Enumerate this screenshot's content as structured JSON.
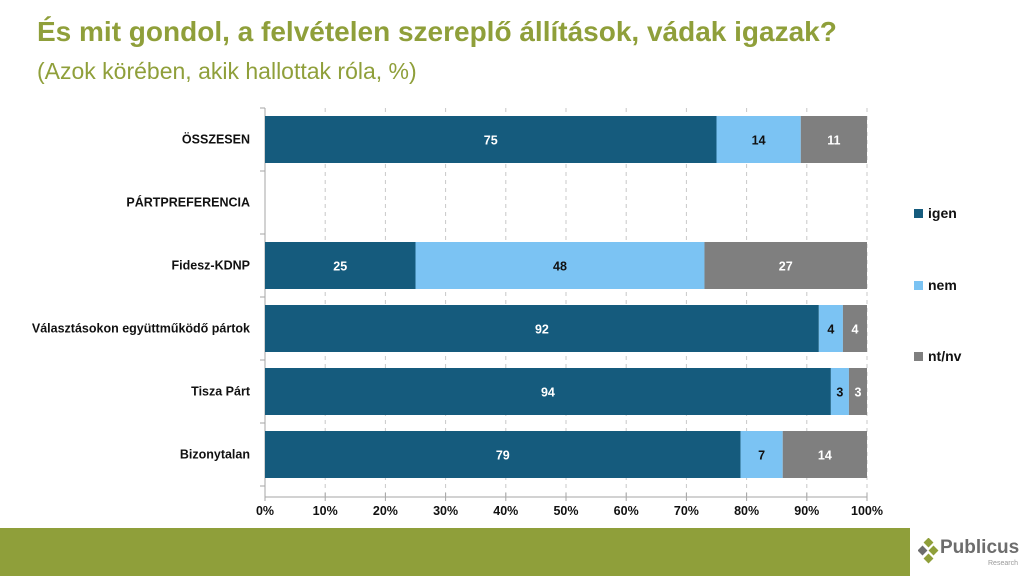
{
  "header": {
    "title": "És mit gondol, a felvételen szereplő állítások, vádak igazak?",
    "subtitle": "(Azok körében, akik hallottak róla, %)"
  },
  "chart_data": {
    "type": "bar",
    "orientation": "horizontal",
    "stacked": true,
    "title": "És mit gondol, a felvételen szereplő állítások, vádak igazak?",
    "subtitle": "(Azok körében, akik hallottak róla, %)",
    "xlabel": "",
    "ylabel": "",
    "xlim": [
      0,
      100
    ],
    "x_ticks": [
      "0%",
      "10%",
      "20%",
      "30%",
      "40%",
      "50%",
      "60%",
      "70%",
      "80%",
      "90%",
      "100%"
    ],
    "grid": "vertical dashed",
    "legend_position": "right",
    "categories": [
      "ÖSSZESEN",
      "PÁRTPREFERENCIA",
      "Fidesz-KDNP",
      "Választásokon együttműködő pártok",
      "Tisza Párt",
      "Bizonytalan"
    ],
    "series": [
      {
        "name": "igen",
        "color": "#155b7d",
        "label_color": "#ffffff",
        "values": [
          75,
          null,
          25,
          92,
          94,
          79
        ]
      },
      {
        "name": "nem",
        "color": "#7bc3f3",
        "label_color": "#111111",
        "values": [
          14,
          null,
          48,
          4,
          3,
          7
        ]
      },
      {
        "name": "nt/nv",
        "color": "#7f7f7f",
        "label_color": "#ffffff",
        "values": [
          11,
          null,
          27,
          4,
          3,
          14
        ]
      }
    ]
  },
  "footer": {
    "brand": "Publicus",
    "brand_sub": "Research",
    "accent": "#8f9f3a"
  }
}
